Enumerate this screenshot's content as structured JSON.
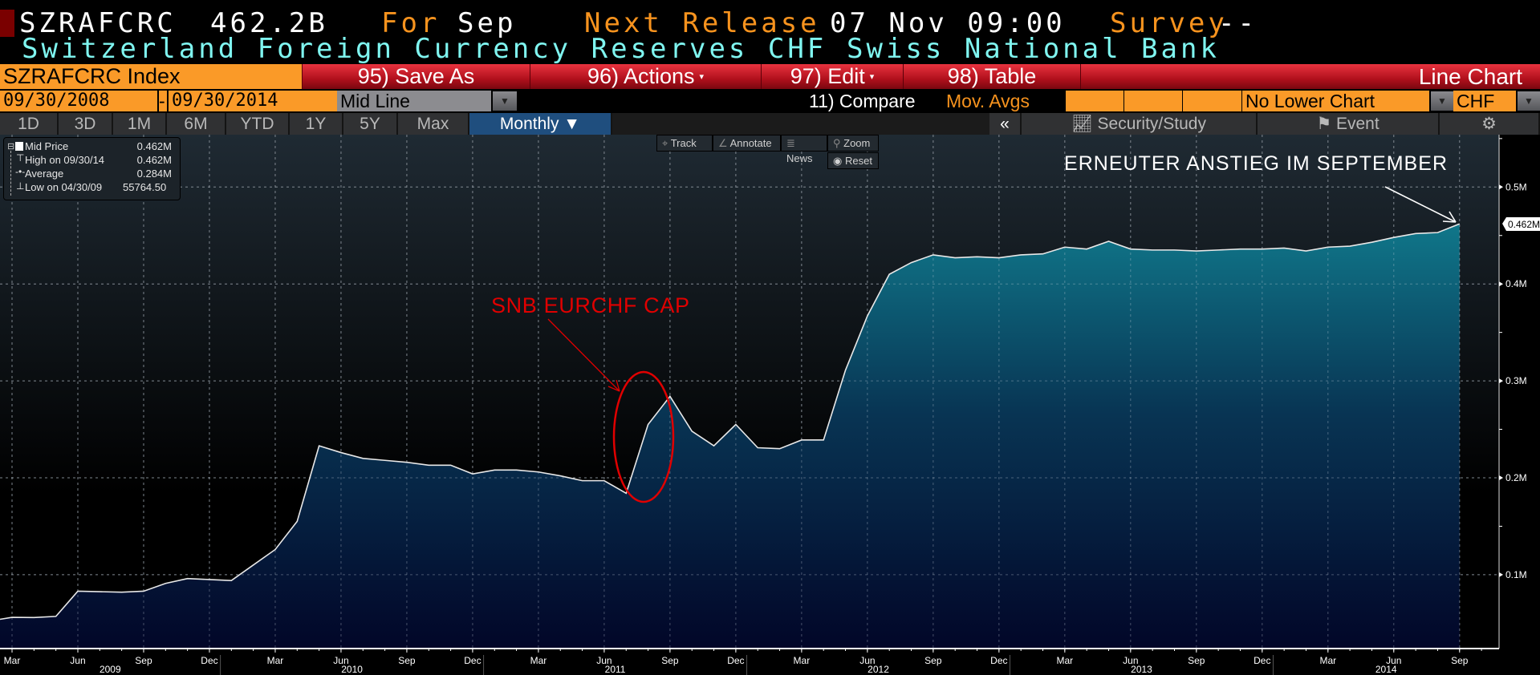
{
  "header": {
    "ticker": "SZRAFCRC",
    "value": "462.2B",
    "for_label": "For",
    "period": "Sep",
    "next_release_label": "Next Release",
    "next_release": "07 Nov 09:00",
    "survey_label": "Survey",
    "survey": "--",
    "description": "Switzerland Foreign Currency Reserves CHF",
    "source": "Swiss National Bank"
  },
  "toolbar": {
    "security": "SZRAFCRC Index",
    "save_as": "95) Save As",
    "actions": "96) Actions",
    "edit": "97) Edit",
    "table": "98) Table",
    "chart_type": "Line Chart",
    "caret": "▾"
  },
  "daterow": {
    "start": "09/30/2008",
    "sep": "-",
    "end": "09/30/2014",
    "mode": "Mid Line",
    "compare": "11) Compare",
    "mov_avgs": "Mov. Avgs",
    "lower_chart": "No Lower Chart",
    "currency": "CHF",
    "arrow": "▼"
  },
  "tabs": [
    "1D",
    "3D",
    "1M",
    "6M",
    "YTD",
    "1Y",
    "5Y",
    "Max"
  ],
  "period_tab": "Monthly ▼",
  "right_tabs": {
    "collapse": "«",
    "security_study": "Security/Study",
    "event": "Event",
    "settings": "⚙"
  },
  "chart_tools": {
    "track": "Track",
    "annotate": "Annotate",
    "news": "News",
    "zoom": "Zoom",
    "reset": "Reset"
  },
  "legend": [
    {
      "label": "Mid Price",
      "value": "0.462M"
    },
    {
      "label": "High on 09/30/14",
      "value": "0.462M"
    },
    {
      "label": "Average",
      "value": "0.284M"
    },
    {
      "label": "Low on 04/30/09",
      "value": "55764.50"
    }
  ],
  "annotations": {
    "cap": "SNB EURCHF CAP",
    "september": "ERNEUTER ANSTIEG IM SEPTEMBER"
  },
  "colors": {
    "annotation_red": "#e00000",
    "fill_top": "#10778a",
    "fill_bottom": "#020628",
    "line": "#e8e8e8",
    "orange": "#fa9a28"
  },
  "chart_data": {
    "type": "area",
    "title": "SZRAFCRC Index",
    "ylabel": "CHF",
    "ylim": [
      0.04,
      0.56
    ],
    "yticks": [
      "0.1M",
      "0.2M",
      "0.3M",
      "0.4M",
      "0.5M"
    ],
    "ytick_values": [
      0.1,
      0.2,
      0.3,
      0.4,
      0.5
    ],
    "last_value_label": "0.462M",
    "x_start": "2009-03",
    "month_labels": [
      "Mar",
      "Jun",
      "Sep",
      "Dec"
    ],
    "years": [
      "2009",
      "2010",
      "2011",
      "2012",
      "2013",
      "2014"
    ],
    "series": [
      {
        "name": "Mid Price",
        "unit": "M CHF",
        "values": [
          0.056,
          0.0558,
          0.057,
          0.083,
          0.0825,
          0.082,
          0.083,
          0.091,
          0.096,
          0.095,
          0.094,
          0.11,
          0.126,
          0.155,
          0.233,
          0.226,
          0.22,
          0.218,
          0.216,
          0.213,
          0.213,
          0.204,
          0.208,
          0.208,
          0.206,
          0.202,
          0.197,
          0.197,
          0.184,
          0.255,
          0.284,
          0.248,
          0.233,
          0.255,
          0.231,
          0.23,
          0.239,
          0.239,
          0.311,
          0.367,
          0.41,
          0.422,
          0.43,
          0.427,
          0.428,
          0.427,
          0.43,
          0.431,
          0.438,
          0.436,
          0.444,
          0.436,
          0.435,
          0.435,
          0.434,
          0.435,
          0.436,
          0.436,
          0.437,
          0.434,
          0.438,
          0.439,
          0.443,
          0.448,
          0.452,
          0.453,
          0.462
        ]
      }
    ]
  }
}
